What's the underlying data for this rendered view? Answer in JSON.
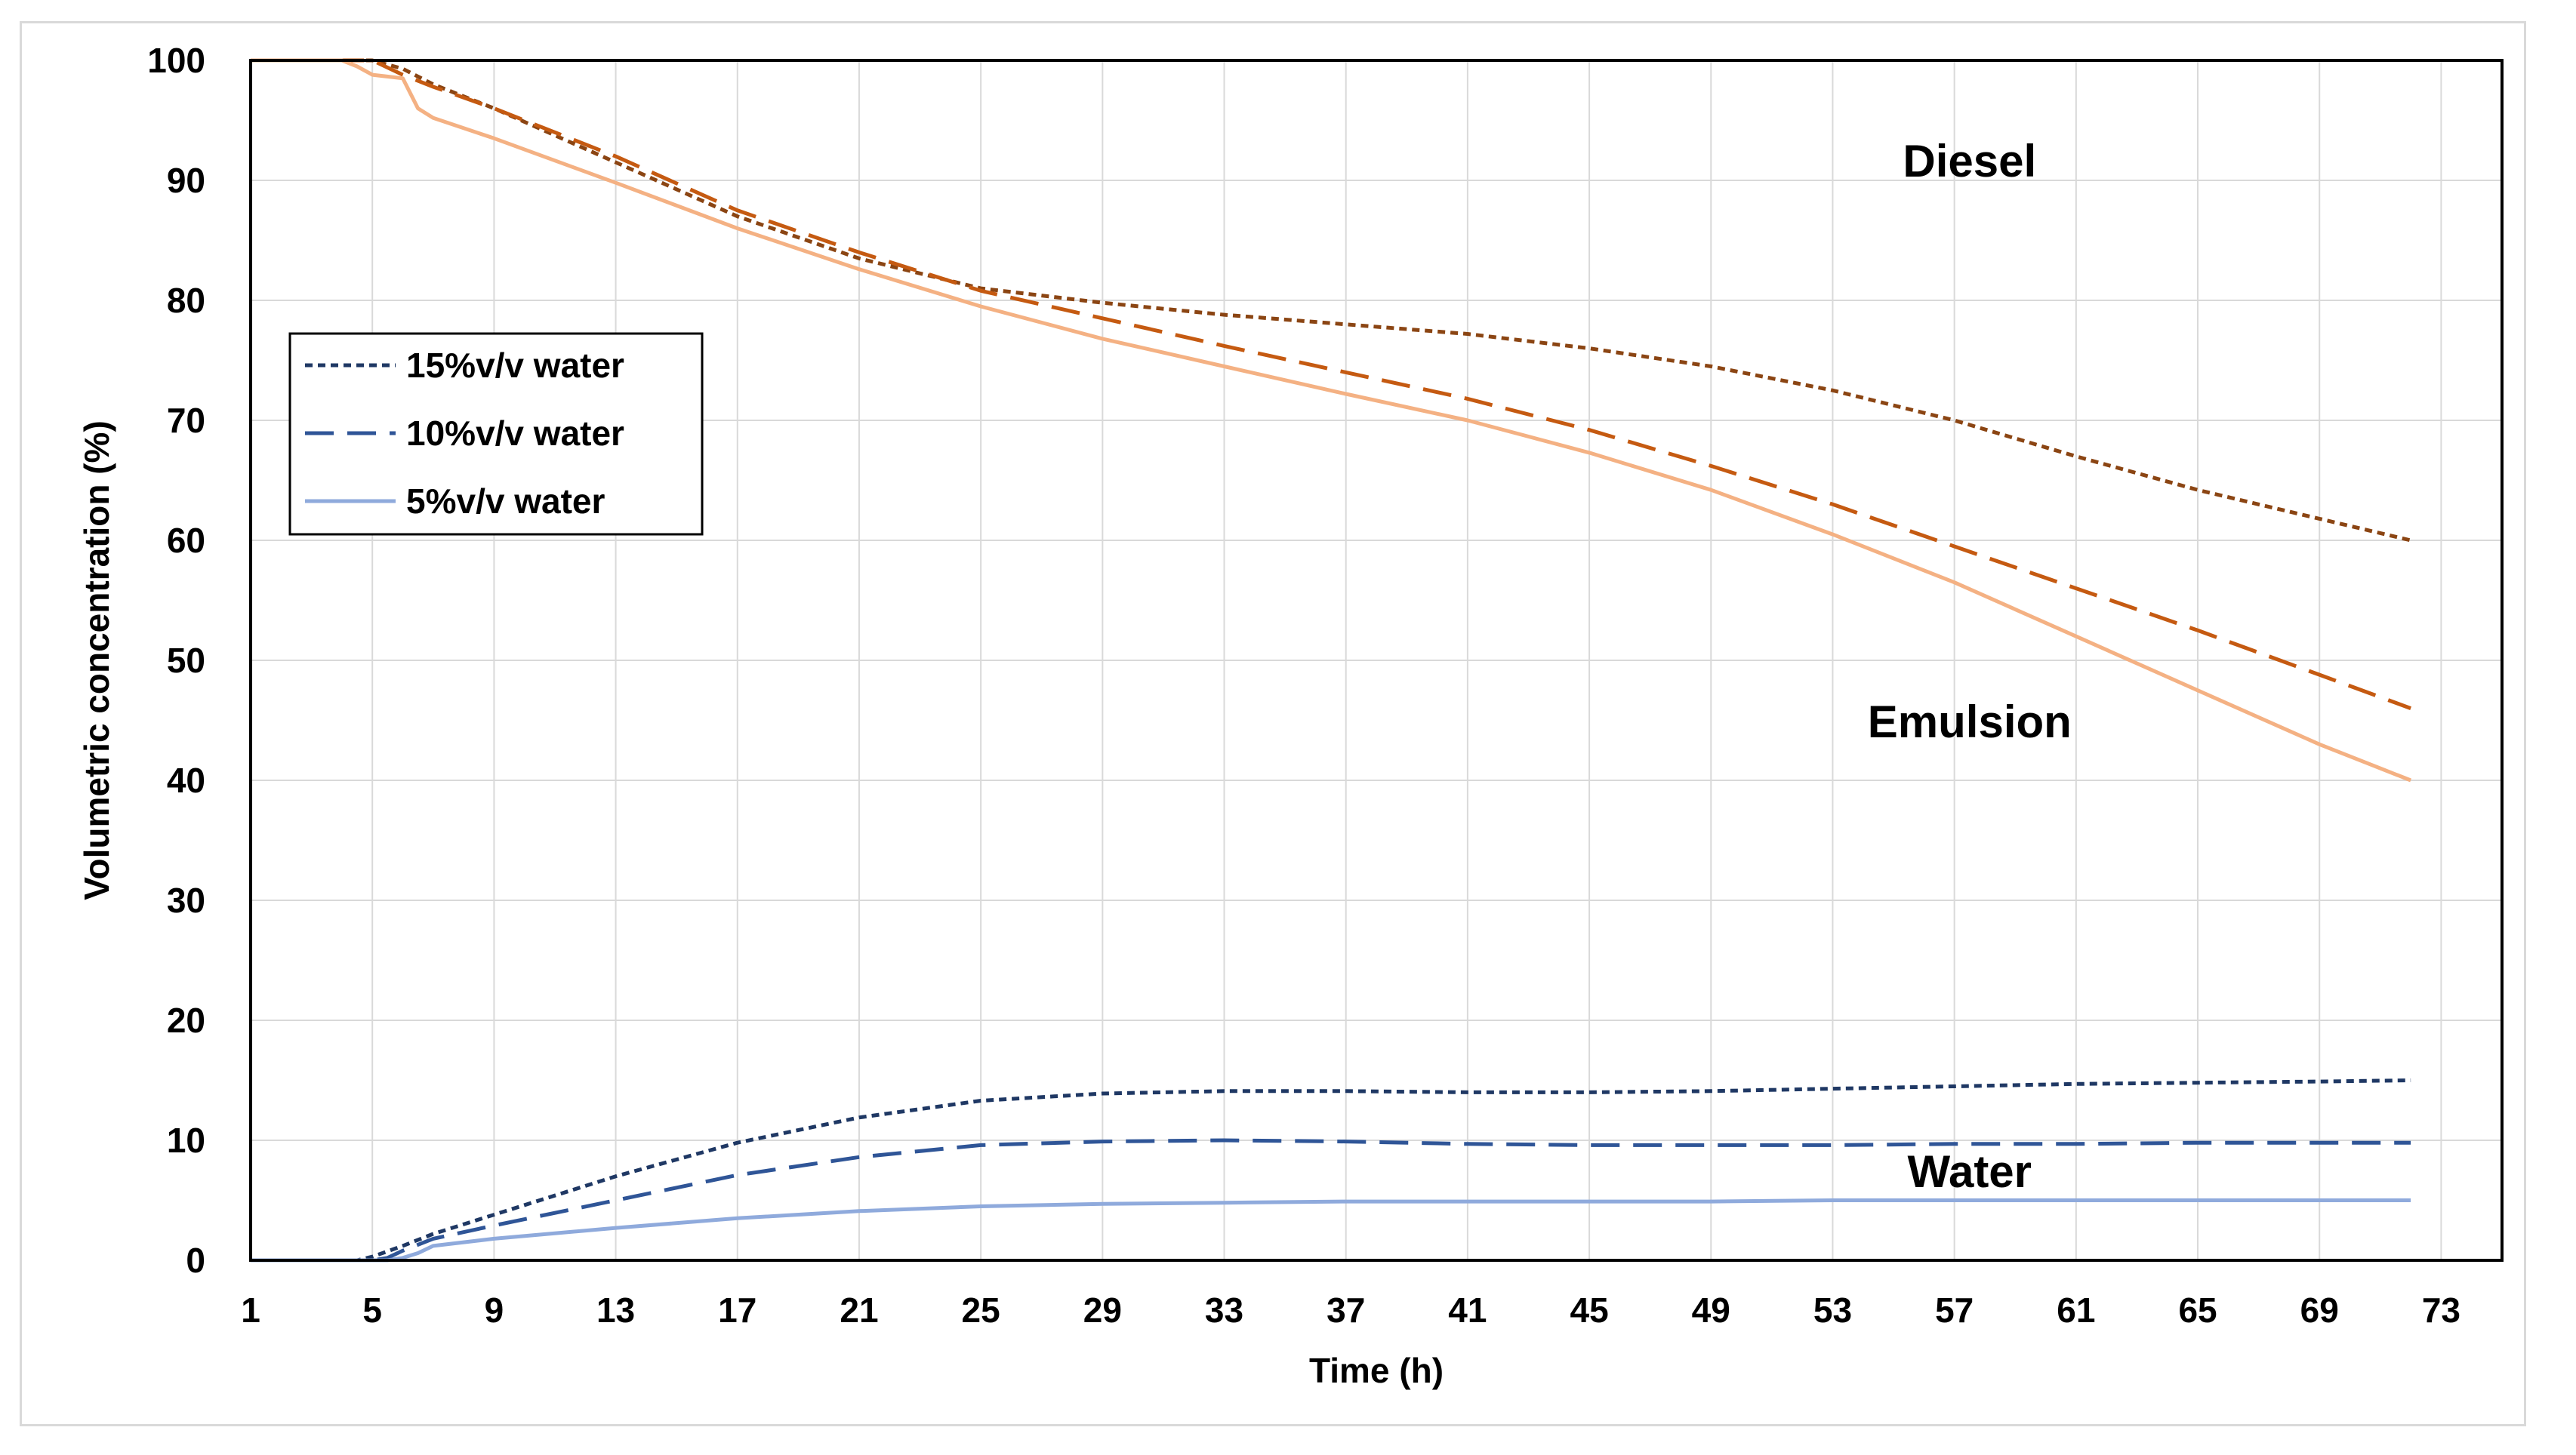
{
  "chart_data": {
    "type": "line",
    "title": "",
    "xlabel": "Time (h)",
    "ylabel": "Volumetric concentration (%)",
    "xlim": [
      1,
      75
    ],
    "ylim": [
      0,
      100
    ],
    "xticks": [
      1,
      5,
      9,
      13,
      17,
      21,
      25,
      29,
      33,
      37,
      41,
      45,
      49,
      53,
      57,
      61,
      65,
      69,
      73
    ],
    "yticks": [
      0,
      10,
      20,
      30,
      40,
      50,
      60,
      70,
      80,
      90,
      100
    ],
    "grid": true,
    "legend_position": "upper-left",
    "legend": [
      {
        "label": "15%v/v water",
        "style": "dotted",
        "color": "#1f3864"
      },
      {
        "label": "10%v/v water",
        "style": "dashed",
        "color": "#2f5597"
      },
      {
        "label": "5%v/v water",
        "style": "solid",
        "color": "#8faadc"
      }
    ],
    "annotations": [
      "Diesel",
      "Emulsion",
      "Water"
    ],
    "series": [
      {
        "name": "Diesel - 15%v/v water",
        "group": "Diesel",
        "style": "dotted",
        "color": "#8b4513",
        "x": [
          1,
          4,
          5,
          6,
          7,
          9,
          13,
          17,
          21,
          25,
          29,
          33,
          37,
          41,
          45,
          49,
          53,
          57,
          61,
          65,
          69,
          72
        ],
        "y": [
          100,
          100,
          100,
          99.3,
          98,
          96,
          91.5,
          87,
          83.5,
          81,
          79.8,
          78.8,
          78,
          77.2,
          76,
          74.5,
          72.5,
          70,
          67,
          64.2,
          61.8,
          60
        ]
      },
      {
        "name": "Diesel - 10%v/v water",
        "group": "Diesel",
        "style": "dashed",
        "color": "#c55a11",
        "x": [
          1,
          4,
          5,
          6,
          7,
          9,
          13,
          17,
          21,
          25,
          29,
          33,
          37,
          41,
          45,
          49,
          53,
          57,
          61,
          65,
          69,
          72
        ],
        "y": [
          100,
          100,
          100,
          98.8,
          97.8,
          96,
          92,
          87.5,
          84,
          80.8,
          78.5,
          76.2,
          74,
          71.8,
          69.2,
          66.2,
          63,
          59.5,
          56,
          52.5,
          48.8,
          46
        ]
      },
      {
        "name": "Diesel - 5%v/v water",
        "group": "Emulsion",
        "style": "solid",
        "color": "#f4b183",
        "x": [
          1,
          4,
          4.5,
          5,
          6,
          6.5,
          7,
          9,
          13,
          17,
          21,
          25,
          29,
          33,
          37,
          41,
          45,
          49,
          53,
          57,
          61,
          65,
          69,
          72
        ],
        "y": [
          100,
          100,
          99.5,
          98.8,
          98.5,
          96,
          95.2,
          93.5,
          89.8,
          86,
          82.6,
          79.5,
          76.8,
          74.5,
          72.2,
          70,
          67.3,
          64.2,
          60.5,
          56.5,
          52,
          47.5,
          43,
          40
        ]
      },
      {
        "name": "Water - 15%v/v water",
        "group": "Water",
        "style": "dotted",
        "color": "#1f3864",
        "x": [
          1,
          4.5,
          5,
          6,
          7,
          9,
          13,
          17,
          21,
          25,
          29,
          33,
          37,
          41,
          45,
          49,
          53,
          57,
          61,
          65,
          69,
          72
        ],
        "y": [
          0,
          0,
          0.3,
          1.2,
          2.2,
          3.8,
          7,
          9.8,
          11.9,
          13.3,
          13.9,
          14.1,
          14.1,
          14.0,
          14.0,
          14.1,
          14.3,
          14.5,
          14.7,
          14.8,
          14.9,
          15.0
        ]
      },
      {
        "name": "Water - 10%v/v water",
        "group": "Water",
        "style": "dashed",
        "color": "#2f5597",
        "x": [
          1,
          5,
          5.5,
          6,
          7,
          9,
          13,
          17,
          21,
          25,
          29,
          33,
          37,
          41,
          45,
          49,
          53,
          57,
          61,
          65,
          69,
          72
        ],
        "y": [
          0,
          0,
          0.2,
          0.8,
          1.8,
          2.9,
          5.0,
          7.1,
          8.6,
          9.6,
          9.9,
          10.0,
          9.9,
          9.7,
          9.6,
          9.6,
          9.6,
          9.7,
          9.7,
          9.8,
          9.8,
          9.8
        ]
      },
      {
        "name": "Water - 5%v/v water",
        "group": "Water",
        "style": "solid",
        "color": "#8faadc",
        "x": [
          1,
          5.5,
          6,
          6.5,
          7,
          9,
          13,
          17,
          21,
          25,
          29,
          33,
          37,
          41,
          45,
          49,
          53,
          57,
          61,
          65,
          69,
          72
        ],
        "y": [
          0,
          0,
          0.2,
          0.6,
          1.2,
          1.8,
          2.7,
          3.5,
          4.1,
          4.5,
          4.7,
          4.8,
          4.9,
          4.9,
          4.9,
          4.9,
          5.0,
          5.0,
          5.0,
          5.0,
          5.0,
          5.0
        ]
      }
    ]
  }
}
